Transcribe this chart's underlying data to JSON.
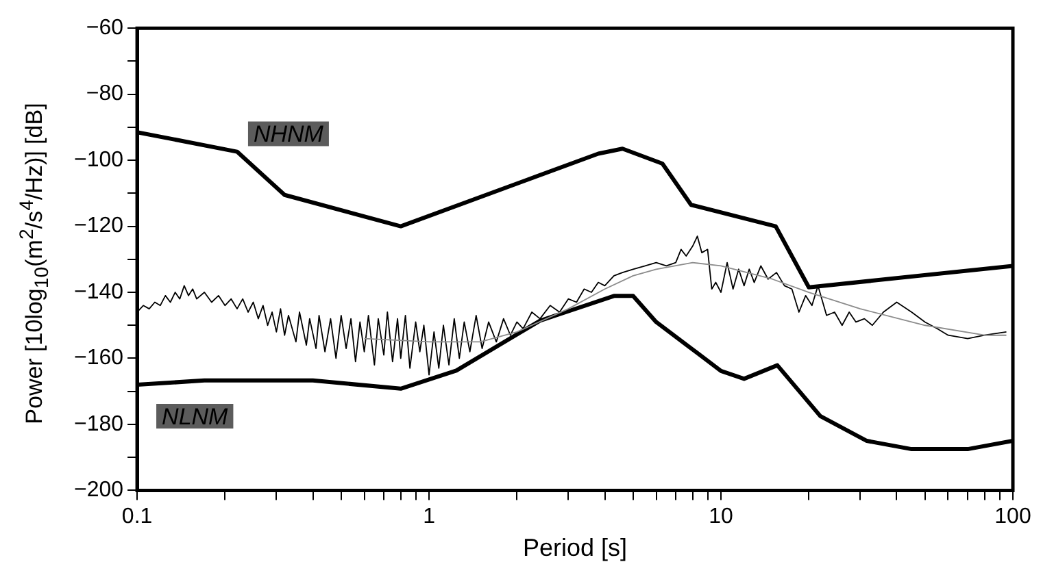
{
  "chart_data": {
    "type": "line",
    "xlabel": "Period [s]",
    "ylabel": "Power [10log$_{10}$(m$^{2}$/s$^{4}$/Hz)] [dB]",
    "log": "x",
    "grid": false,
    "legend": false,
    "marker": "none",
    "line_style": "solid",
    "xlim": [
      0.1,
      100
    ],
    "ylim": [
      -200,
      -60
    ],
    "xticks": [
      0.1,
      {
        "value": 0.2,
        "label": null
      },
      {
        "value": 0.3,
        "label": null
      },
      {
        "value": 0.4,
        "label": null
      },
      {
        "value": 0.5,
        "label": null
      },
      {
        "value": 0.6,
        "label": null
      },
      {
        "value": 0.7,
        "label": null
      },
      {
        "value": 0.8,
        "label": null
      },
      {
        "value": 0.9,
        "label": null
      },
      1,
      {
        "value": 2,
        "label": null
      },
      {
        "value": 3,
        "label": null
      },
      {
        "value": 4,
        "label": null
      },
      {
        "value": 5,
        "label": null
      },
      {
        "value": 6,
        "label": null
      },
      {
        "value": 7,
        "label": null
      },
      {
        "value": 8,
        "label": null
      },
      {
        "value": 9,
        "label": null
      },
      10,
      {
        "value": 20,
        "label": null
      },
      {
        "value": 30,
        "label": null
      },
      {
        "value": 40,
        "label": null
      },
      {
        "value": 50,
        "label": null
      },
      {
        "value": 60,
        "label": null
      },
      {
        "value": 70,
        "label": null
      },
      {
        "value": 80,
        "label": null
      },
      {
        "value": 90,
        "label": null
      },
      100
    ],
    "yticks": [
      -200,
      {
        "value": -190,
        "label": null
      },
      -180,
      {
        "value": -170,
        "label": null
      },
      -160,
      {
        "value": -150,
        "label": null
      },
      -140,
      {
        "value": -130,
        "label": null
      },
      -120,
      {
        "value": -110,
        "label": null
      },
      -100,
      {
        "value": -90,
        "label": null
      },
      -80,
      {
        "value": -70,
        "label": null
      },
      -60
    ],
    "series": [
      {
        "name": "NHNM",
        "color": "#000000",
        "x": [
          0.1,
          0.22,
          0.32,
          0.8,
          3.8,
          4.6,
          6.3,
          7.9,
          15.4,
          20,
          100
        ],
        "values": [
          -91.5,
          -97.4,
          -110.5,
          -120,
          -98,
          -96.5,
          -101,
          -113.5,
          -120,
          -138.5,
          -132
        ]
      },
      {
        "name": "NLNM",
        "color": "#000000",
        "x": [
          0.1,
          0.17,
          0.4,
          0.8,
          1.24,
          2.4,
          4.3,
          5,
          6,
          10,
          12,
          15.6,
          21.9,
          31.6,
          45,
          70,
          100
        ],
        "values": [
          -168,
          -166.7,
          -166.7,
          -169.2,
          -163.7,
          -148.6,
          -141.1,
          -141.1,
          -149,
          -163.8,
          -166.2,
          -162.1,
          -177.5,
          -185,
          -187.5,
          -187.5,
          -185
        ]
      },
      {
        "color": "#000000",
        "x": [
          0.1,
          0.105,
          0.11,
          0.115,
          0.12,
          0.125,
          0.13,
          0.135,
          0.14,
          0.145,
          0.15,
          0.155,
          0.16,
          0.17,
          0.18,
          0.19,
          0.2,
          0.21,
          0.22,
          0.23,
          0.24,
          0.25,
          0.26,
          0.27,
          0.28,
          0.29,
          0.3,
          0.31,
          0.32,
          0.33,
          0.35,
          0.36,
          0.38,
          0.39,
          0.41,
          0.42,
          0.44,
          0.46,
          0.48,
          0.5,
          0.52,
          0.54,
          0.56,
          0.58,
          0.6,
          0.62,
          0.65,
          0.67,
          0.7,
          0.72,
          0.75,
          0.78,
          0.8,
          0.83,
          0.86,
          0.9,
          0.93,
          0.96,
          1,
          1.04,
          1.08,
          1.12,
          1.17,
          1.22,
          1.27,
          1.32,
          1.38,
          1.45,
          1.52,
          1.6,
          1.7,
          1.8,
          1.9,
          2,
          2.1,
          2.25,
          2.4,
          2.6,
          2.8,
          3,
          3.2,
          3.4,
          3.6,
          3.8,
          4,
          4.3,
          4.6,
          5,
          5.5,
          6,
          6.5,
          7,
          7.3,
          7.6,
          8,
          8.3,
          8.6,
          9,
          9.3,
          9.6,
          10,
          10.5,
          11,
          11.5,
          12,
          12.5,
          13,
          13.7,
          14.5,
          15.5,
          16.5,
          17.5,
          18.5,
          19.5,
          20.5,
          21.5,
          23,
          24.5,
          26,
          27.5,
          29,
          31,
          33,
          36,
          40,
          45,
          50,
          55,
          60,
          70,
          80,
          95
        ],
        "values": [
          -146,
          -144,
          -145,
          -143,
          -144,
          -141,
          -143,
          -140,
          -142,
          -138,
          -141,
          -139,
          -142,
          -140,
          -143,
          -141,
          -144,
          -142,
          -145,
          -142,
          -146,
          -143,
          -148,
          -144,
          -150,
          -146,
          -152,
          -145,
          -153,
          -147,
          -155,
          -146,
          -156,
          -148,
          -157,
          -147,
          -158,
          -148,
          -160,
          -147,
          -157,
          -148,
          -161,
          -149,
          -158,
          -147,
          -162,
          -148,
          -159,
          -146,
          -161,
          -148,
          -160,
          -147,
          -163,
          -149,
          -158,
          -150,
          -165,
          -152,
          -163,
          -150,
          -162,
          -148,
          -160,
          -149,
          -158,
          -147,
          -157,
          -149,
          -155,
          -148,
          -153,
          -149,
          -151,
          -146,
          -148,
          -144,
          -146,
          -142,
          -143,
          -139,
          -140,
          -137,
          -138,
          -135,
          -134,
          -133,
          -132,
          -131,
          -132,
          -131,
          -127,
          -129,
          -126,
          -123,
          -128,
          -127,
          -139,
          -137,
          -140,
          -131,
          -139,
          -133,
          -138,
          -133,
          -137,
          -132,
          -136,
          -134,
          -138,
          -139,
          -146,
          -141,
          -144,
          -138,
          -147,
          -146,
          -150,
          -146,
          -149,
          -148,
          -150,
          -146,
          -143,
          -146,
          -149,
          -151,
          -153,
          -154,
          -153,
          -152
        ]
      },
      {
        "color": "#8c8c8c",
        "x": [
          0.6,
          1,
          1.5,
          2,
          3,
          4,
          5,
          6,
          8,
          10,
          15,
          20,
          30,
          50,
          80,
          95
        ],
        "values": [
          -154,
          -155,
          -155,
          -152,
          -145,
          -139,
          -135,
          -133,
          -131,
          -132,
          -136,
          -140,
          -145,
          -150,
          -153,
          -153
        ]
      }
    ]
  }
}
